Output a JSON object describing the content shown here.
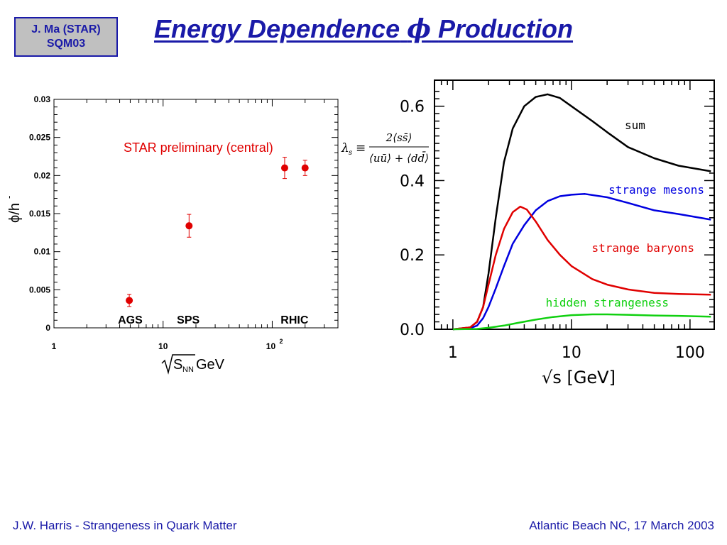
{
  "header": {
    "badge_line1": "J. Ma (STAR)",
    "badge_line2": "SQM03",
    "title_text": "Energy Dependence",
    "title_symbol": "ϕ",
    "title_tail": "Production"
  },
  "footer": {
    "left": "J.W. Harris - Strangeness in Quark Matter",
    "right": "Atlantic Beach NC, 17 March 2003"
  },
  "chart_data": [
    {
      "type": "scatter",
      "xscale": "log",
      "xlim": [
        1,
        400
      ],
      "ylim": [
        0,
        0.03
      ],
      "x_ticklabels": [
        "1",
        "10",
        "10",
        "2"
      ],
      "y_ticks": [
        0,
        0.005,
        0.01,
        0.015,
        0.02,
        0.025,
        0.03
      ],
      "y_ticklabels": [
        "0",
        "0.005",
        "0.01",
        "0.015",
        "0.02",
        "0.025",
        "0.03"
      ],
      "xlabel_radicand": "S",
      "xlabel_sub": "NN",
      "xlabel_unit": "GeV",
      "ylabel": "ϕ/h",
      "ylabel_sup": "-",
      "annotation": "STAR preliminary (central)",
      "region_labels": [
        {
          "text": "AGS",
          "x": 5
        },
        {
          "text": "SPS",
          "x": 17
        },
        {
          "text": "RHIC",
          "x": 160
        }
      ],
      "points": [
        {
          "x": 4.9,
          "y": 0.0036,
          "err": 0.0008
        },
        {
          "x": 17.3,
          "y": 0.0134,
          "err": 0.0015
        },
        {
          "x": 130,
          "y": 0.021,
          "err": 0.0014
        },
        {
          "x": 200,
          "y": 0.021,
          "err": 0.001
        }
      ],
      "grid": false,
      "point_color": "#e00000"
    },
    {
      "type": "line",
      "xscale": "log",
      "xlim": [
        0.7,
        160
      ],
      "ylim": [
        0,
        0.67
      ],
      "x_ticklabels": [
        "1",
        "10",
        "100"
      ],
      "y_ticks": [
        0,
        0.2,
        0.4,
        0.6
      ],
      "y_ticklabels": [
        "0.0",
        "0.2",
        "0.4",
        "0.6"
      ],
      "xlabel": "√s  [GeV]",
      "formula": {
        "lhs": "λ",
        "lhs_sub": "s",
        "equiv": "≡",
        "numerator": "2⟨ss̄⟩",
        "denominator": "⟨uū⟩ + ⟨dd̄⟩"
      },
      "series": [
        {
          "name": "sum",
          "color": "#000000",
          "x": [
            1.0,
            1.4,
            1.6,
            1.8,
            2.0,
            2.3,
            2.7,
            3.2,
            4.0,
            5.0,
            6.3,
            8.0,
            10,
            15,
            20,
            30,
            50,
            80,
            150
          ],
          "y": [
            0.0,
            0.005,
            0.02,
            0.06,
            0.15,
            0.3,
            0.45,
            0.54,
            0.6,
            0.625,
            0.632,
            0.622,
            0.6,
            0.56,
            0.53,
            0.49,
            0.46,
            0.44,
            0.425
          ]
        },
        {
          "name": "strange mesons",
          "color": "#0000e0",
          "x": [
            1.0,
            1.4,
            1.6,
            1.8,
            2.0,
            2.3,
            2.7,
            3.2,
            4.0,
            5.0,
            6.3,
            8.0,
            10,
            13,
            20,
            30,
            50,
            80,
            150
          ],
          "y": [
            0.0,
            0.003,
            0.01,
            0.03,
            0.06,
            0.11,
            0.17,
            0.23,
            0.28,
            0.32,
            0.345,
            0.358,
            0.362,
            0.364,
            0.355,
            0.34,
            0.32,
            0.31,
            0.295
          ]
        },
        {
          "name": "strange baryons",
          "color": "#e00000",
          "x": [
            1.0,
            1.4,
            1.6,
            1.8,
            2.0,
            2.3,
            2.7,
            3.2,
            3.7,
            4.2,
            5.0,
            6.3,
            8.0,
            10,
            15,
            20,
            30,
            50,
            80,
            150
          ],
          "y": [
            0.0,
            0.005,
            0.02,
            0.06,
            0.12,
            0.2,
            0.27,
            0.315,
            0.33,
            0.322,
            0.29,
            0.24,
            0.2,
            0.17,
            0.135,
            0.12,
            0.107,
            0.098,
            0.095,
            0.093
          ]
        },
        {
          "name": "hidden strangeness",
          "color": "#10d010",
          "x": [
            1.0,
            1.6,
            2.0,
            2.7,
            3.5,
            5.0,
            7.0,
            10,
            15,
            20,
            30,
            50,
            80,
            150
          ],
          "y": [
            0.0,
            0.001,
            0.004,
            0.01,
            0.017,
            0.026,
            0.033,
            0.038,
            0.04,
            0.04,
            0.039,
            0.037,
            0.036,
            0.034
          ]
        }
      ],
      "grid": false
    }
  ]
}
